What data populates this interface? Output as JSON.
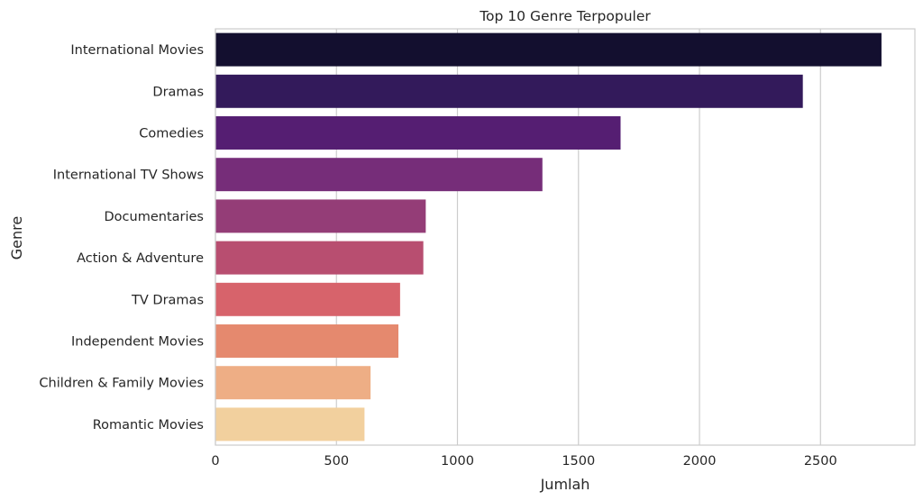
{
  "chart_data": {
    "type": "bar",
    "orientation": "horizontal",
    "title": "Top 10 Genre Terpopuler",
    "xlabel": "Jumlah",
    "ylabel": "Genre",
    "categories": [
      "International Movies",
      "Dramas",
      "Comedies",
      "International TV Shows",
      "Documentaries",
      "Action & Adventure",
      "TV Dramas",
      "Independent Movies",
      "Children & Family Movies",
      "Romantic Movies"
    ],
    "values": [
      2752,
      2427,
      1674,
      1351,
      869,
      859,
      763,
      756,
      641,
      616
    ],
    "colors": [
      "#130f2f",
      "#331a5b",
      "#551e72",
      "#762d79",
      "#943d77",
      "#b84e70",
      "#d7636b",
      "#e5896e",
      "#eeae85",
      "#f2d09e"
    ],
    "xlim": [
      0,
      2890
    ],
    "xticks": [
      0,
      500,
      1000,
      1500,
      2000,
      2500
    ],
    "grid": true,
    "grid_axis": "x"
  }
}
